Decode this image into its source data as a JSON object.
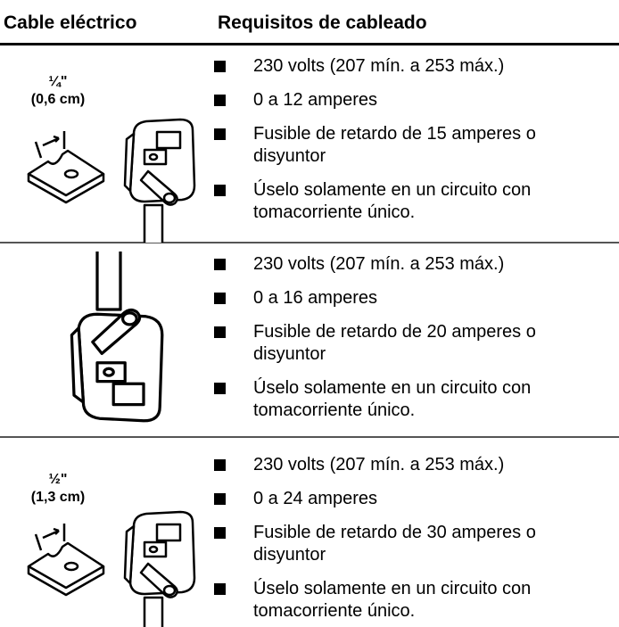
{
  "table": {
    "header": [
      "Cable eléctrico",
      "Requisitos de cableado"
    ],
    "rows": [
      {
        "label": [
          "¼\"",
          "(0,6 cm)"
        ],
        "items": [
          "230 volts (207 mín. a 253 máx.)",
          "0 a 12 amperes",
          "Fusible de retardo de 15 amperes o disyuntor",
          "Úselo solamente en un circuito con tomacorriente único."
        ]
      },
      {
        "items": [
          "230 volts (207 mín. a 253 máx.)",
          "0 a 16 amperes",
          "Fusible de retardo de 20 amperes o disyuntor",
          "Úselo solamente en un circuito con tomacorriente único."
        ]
      },
      {
        "label": [
          "½\"",
          "(1,3 cm)"
        ],
        "items": [
          "230 volts (207 mín. a 253 máx.)",
          "0 a 24 amperes",
          "Fusible de retardo de 30 amperes o disyuntor",
          "Úselo solamente en un circuito con tomacorriente único."
        ]
      }
    ]
  }
}
